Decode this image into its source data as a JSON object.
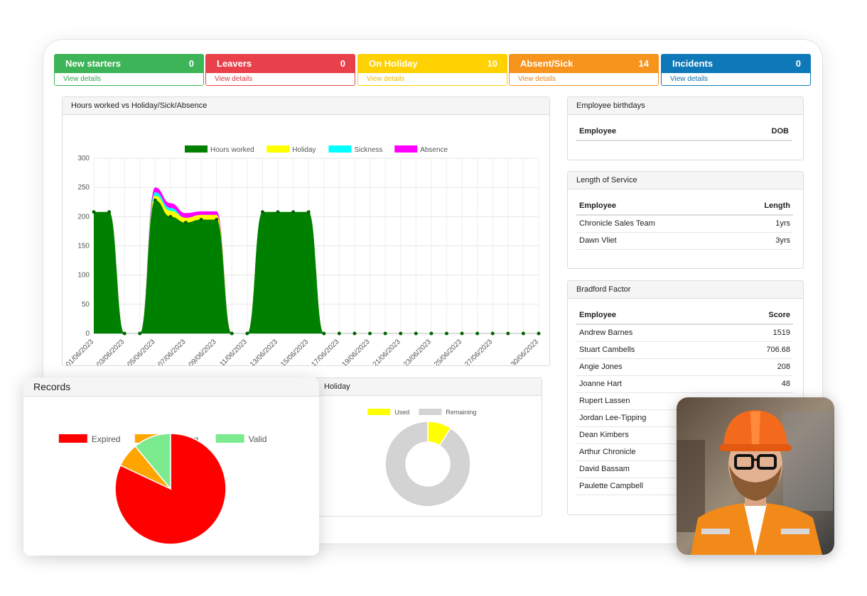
{
  "kpis": [
    {
      "label": "New starters",
      "value": "0",
      "link": "View details",
      "color": "#3cb457",
      "light": "#33a34e"
    },
    {
      "label": "Leavers",
      "value": "0",
      "link": "View details",
      "color": "#e8414b",
      "light": "#d9363f"
    },
    {
      "label": "On Holiday",
      "value": "10",
      "link": "View details",
      "color": "#ffd100",
      "light": "#e6bb00"
    },
    {
      "label": "Absent/Sick",
      "value": "14",
      "link": "View details",
      "color": "#f7941d",
      "light": "#e5861a"
    },
    {
      "label": "Incidents",
      "value": "0",
      "link": "View details",
      "color": "#0f78b8",
      "light": "#0f6fa8"
    }
  ],
  "hours_panel": {
    "title": "Hours worked vs Holiday/Sick/Absence"
  },
  "holiday_panel": {
    "title": "Holiday"
  },
  "records_panel": {
    "title": "Records"
  },
  "birthdays": {
    "title": "Employee birthdays",
    "col1": "Employee",
    "col2": "DOB"
  },
  "service": {
    "title": "Length of Service",
    "col1": "Employee",
    "col2": "Length",
    "rows": [
      {
        "name": "Chronicle Sales Team",
        "value": "1yrs"
      },
      {
        "name": "Dawn Vliet",
        "value": "3yrs"
      }
    ]
  },
  "bradford": {
    "title": "Bradford Factor",
    "col1": "Employee",
    "col2": "Score",
    "rows": [
      {
        "name": "Andrew Barnes",
        "value": "1519"
      },
      {
        "name": "Stuart Cambells",
        "value": "706.68"
      },
      {
        "name": "Angie Jones",
        "value": "208"
      },
      {
        "name": "Joanne Hart",
        "value": "48"
      },
      {
        "name": "Rupert Lassen",
        "value": ""
      },
      {
        "name": "Jordan Lee-Tipping",
        "value": ""
      },
      {
        "name": "Dean Kimbers",
        "value": ""
      },
      {
        "name": "Arthur Chronicle",
        "value": ""
      },
      {
        "name": "David Bassam",
        "value": ""
      },
      {
        "name": "Paulette Campbell",
        "value": ""
      }
    ]
  },
  "photo": {
    "icon": "worker-photo-icon"
  },
  "chart_data": [
    {
      "type": "area",
      "title": "",
      "ylim": [
        0,
        300
      ],
      "yticks": [
        0,
        50,
        100,
        150,
        200,
        250,
        300
      ],
      "x": [
        "01/06/2023",
        "02/06/2023",
        "03/06/2023",
        "04/06/2023",
        "05/06/2023",
        "06/06/2023",
        "07/06/2023",
        "08/06/2023",
        "09/06/2023",
        "10/06/2023",
        "11/06/2023",
        "12/06/2023",
        "13/06/2023",
        "14/06/2023",
        "15/06/2023",
        "16/06/2023",
        "17/06/2023",
        "18/06/2023",
        "19/06/2023",
        "20/06/2023",
        "21/06/2023",
        "22/06/2023",
        "23/06/2023",
        "24/06/2023",
        "25/06/2023",
        "26/06/2023",
        "27/06/2023",
        "28/06/2023",
        "29/06/2023",
        "30/06/2023"
      ],
      "xtick_labels": [
        "01/06/2023",
        "03/06/2023",
        "05/06/2023",
        "07/06/2023",
        "09/06/2023",
        "11/06/2023",
        "13/06/2023",
        "15/06/2023",
        "17/06/2023",
        "19/06/2023",
        "21/06/2023",
        "23/06/2023",
        "25/06/2023",
        "27/06/2023",
        "30/06/2023"
      ],
      "series": [
        {
          "name": "Hours worked",
          "color": "#008000",
          "values": [
            208,
            208,
            0,
            0,
            228,
            200,
            190,
            195,
            195,
            0,
            0,
            208,
            208,
            208,
            208,
            0,
            0,
            0,
            0,
            0,
            0,
            0,
            0,
            0,
            0,
            0,
            0,
            0,
            0,
            0
          ]
        },
        {
          "name": "Holiday",
          "color": "#ffff00",
          "values": [
            0,
            0,
            0,
            0,
            8,
            10,
            8,
            8,
            8,
            0,
            0,
            0,
            0,
            0,
            0,
            0,
            0,
            0,
            0,
            0,
            0,
            0,
            0,
            0,
            0,
            0,
            0,
            0,
            0,
            0
          ]
        },
        {
          "name": "Sickness",
          "color": "#00ffff",
          "values": [
            0,
            0,
            0,
            0,
            6,
            5,
            0,
            0,
            0,
            0,
            0,
            0,
            0,
            0,
            0,
            0,
            0,
            0,
            0,
            0,
            0,
            0,
            0,
            0,
            0,
            0,
            0,
            0,
            0,
            0
          ]
        },
        {
          "name": "Absence",
          "color": "#ff00ff",
          "values": [
            0,
            0,
            0,
            0,
            8,
            8,
            8,
            6,
            6,
            0,
            0,
            0,
            0,
            0,
            0,
            0,
            0,
            0,
            0,
            0,
            0,
            0,
            0,
            0,
            0,
            0,
            0,
            0,
            0,
            0
          ]
        }
      ],
      "legend": "top",
      "grid": true
    },
    {
      "type": "pie",
      "title": "",
      "labels": [
        "Expired",
        "Expiring",
        "Valid"
      ],
      "values": [
        82,
        7,
        11
      ],
      "colors": [
        "#ff0000",
        "#ffa500",
        "#7ceb8f"
      ],
      "legend": "top"
    },
    {
      "type": "pie",
      "title": "",
      "donut": true,
      "labels": [
        "Used",
        "Remaining"
      ],
      "values": [
        9,
        91
      ],
      "colors": [
        "#ffff00",
        "#d3d3d3"
      ],
      "legend": "top"
    }
  ]
}
